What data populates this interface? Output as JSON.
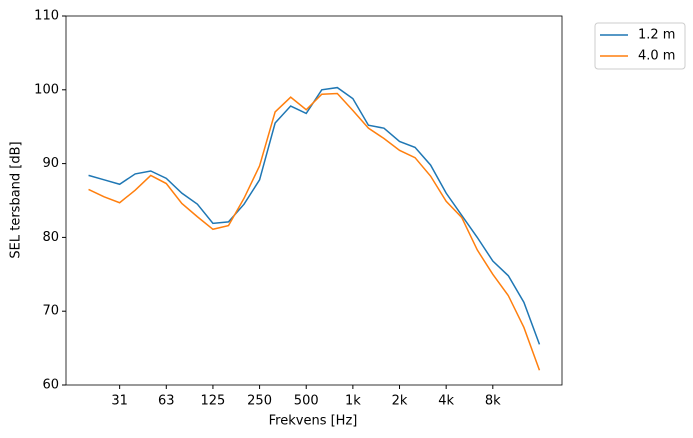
{
  "chart_data": {
    "type": "line",
    "xlabel": "Frekvens [Hz]",
    "ylabel": "SEL tersband [dB]",
    "categories": [
      null,
      null,
      "31",
      null,
      null,
      "63",
      null,
      null,
      "125",
      null,
      null,
      "250",
      null,
      null,
      "500",
      null,
      null,
      "1k",
      null,
      null,
      "2k",
      null,
      null,
      "4k",
      null,
      null,
      "8k",
      null,
      null,
      null
    ],
    "series": [
      {
        "name": "1.2 m",
        "color": "#1f77b4",
        "values": [
          88.4,
          87.8,
          87.2,
          88.6,
          89.0,
          88.0,
          86.0,
          84.5,
          81.9,
          82.1,
          84.5,
          87.8,
          95.5,
          97.8,
          96.8,
          100.0,
          100.3,
          98.8,
          95.2,
          94.8,
          93.0,
          92.2,
          89.8,
          86.0,
          83.0,
          80.0,
          76.8,
          74.8,
          71.2,
          65.5
        ]
      },
      {
        "name": "4.0 m",
        "color": "#ff7f0e",
        "values": [
          86.5,
          85.5,
          84.7,
          86.4,
          88.4,
          87.3,
          84.6,
          82.8,
          81.1,
          81.6,
          85.3,
          89.7,
          97.0,
          99.0,
          97.3,
          99.4,
          99.5,
          97.2,
          94.8,
          93.4,
          91.8,
          90.8,
          88.3,
          84.9,
          82.7,
          78.3,
          75.0,
          72.1,
          67.8,
          62.0
        ]
      }
    ],
    "ylim": [
      60,
      110
    ],
    "yticks": [
      60,
      70,
      80,
      90,
      100,
      110
    ],
    "legend": "outside upper right"
  }
}
